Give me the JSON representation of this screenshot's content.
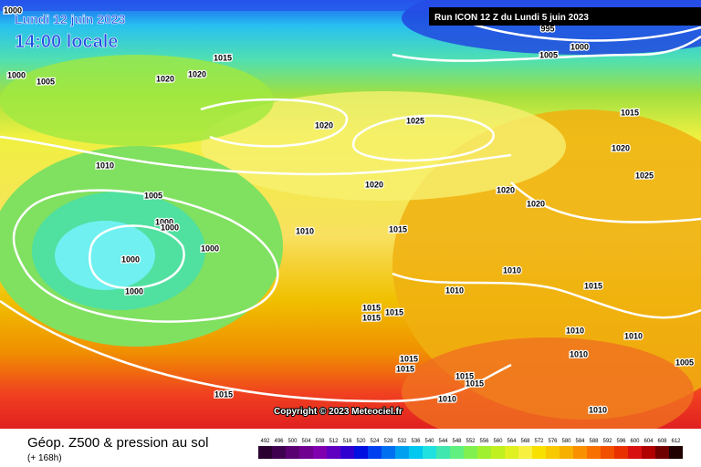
{
  "header": {
    "date": "Lundi 12 juin 2023",
    "time": "14:00 locale",
    "run": "Run ICON 12 Z du Lundi 5 juin 2023"
  },
  "copyright": "Copyright © 2023 Meteociel.fr",
  "legend": {
    "title": "Géop. Z500 & pression au sol",
    "subtitle": "(+ 168h)",
    "scale": [
      492,
      496,
      500,
      504,
      508,
      512,
      516,
      520,
      524,
      528,
      532,
      536,
      540,
      544,
      548,
      552,
      556,
      560,
      564,
      568,
      572,
      576,
      580,
      584,
      588,
      592,
      596,
      600,
      604,
      608,
      612
    ]
  },
  "isobar_labels": [
    "1000",
    "1005",
    "1000",
    "1015",
    "1020",
    "1020",
    "1005",
    "1000",
    "995",
    "1025",
    "1020",
    "1015",
    "1020",
    "1025",
    "1010",
    "1005",
    "1000",
    "1000",
    "1000",
    "1000",
    "1000",
    "1010",
    "1020",
    "1015",
    "1020",
    "1020",
    "1010",
    "1010",
    "1015",
    "1015",
    "1015",
    "1015",
    "1015",
    "1015",
    "1015",
    "1015",
    "1010",
    "1010",
    "1010",
    "1010",
    "1005",
    "1010",
    "1015"
  ]
}
